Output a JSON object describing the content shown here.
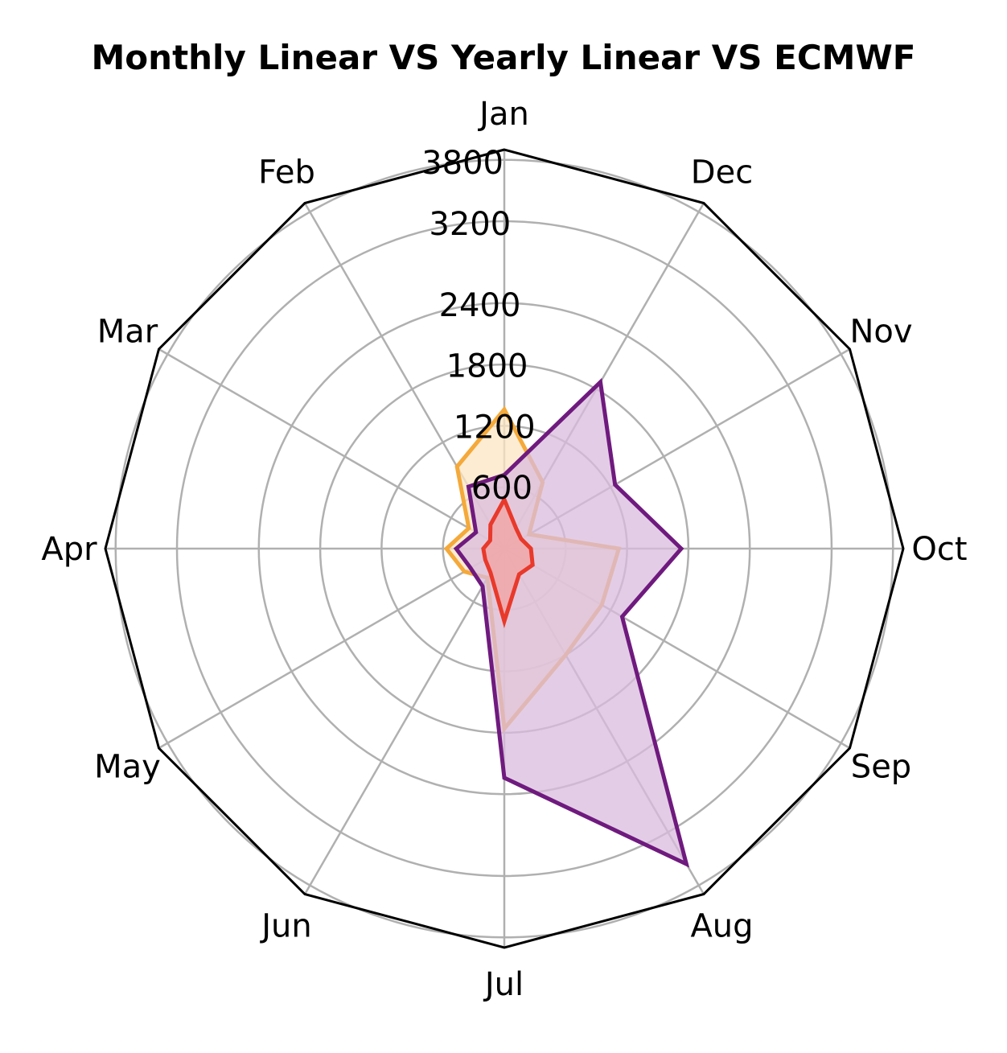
{
  "chart_data": {
    "type": "radar",
    "title": "Monthly Linear VS Yearly Linear VS ECMWF",
    "categories": [
      "Jan",
      "Feb",
      "Mar",
      "Apr",
      "May",
      "Jun",
      "Jul",
      "Aug",
      "Sep",
      "Oct",
      "Nov",
      "Dec"
    ],
    "rlim": [
      0,
      3900
    ],
    "radial_ticks": [
      600,
      1200,
      1800,
      2400,
      3200,
      3800
    ],
    "grid": true,
    "frame": "polygon",
    "series": [
      {
        "color": "#f4a93a",
        "fill": "#fde5c3",
        "values": [
          1360,
          925,
          400,
          565,
          450,
          330,
          1760,
          1200,
          1100,
          1120,
          280,
          750
        ]
      },
      {
        "color": "#6f1a7e",
        "fill": "#d9bcdd",
        "values": [
          720,
          700,
          320,
          470,
          380,
          425,
          2240,
          3560,
          1330,
          1730,
          1250,
          1880
        ]
      },
      {
        "color": "#e8392a",
        "fill": "#f2a3a3",
        "values": [
          480,
          270,
          160,
          205,
          215,
          270,
          710,
          290,
          320,
          260,
          190,
          230
        ]
      }
    ]
  }
}
